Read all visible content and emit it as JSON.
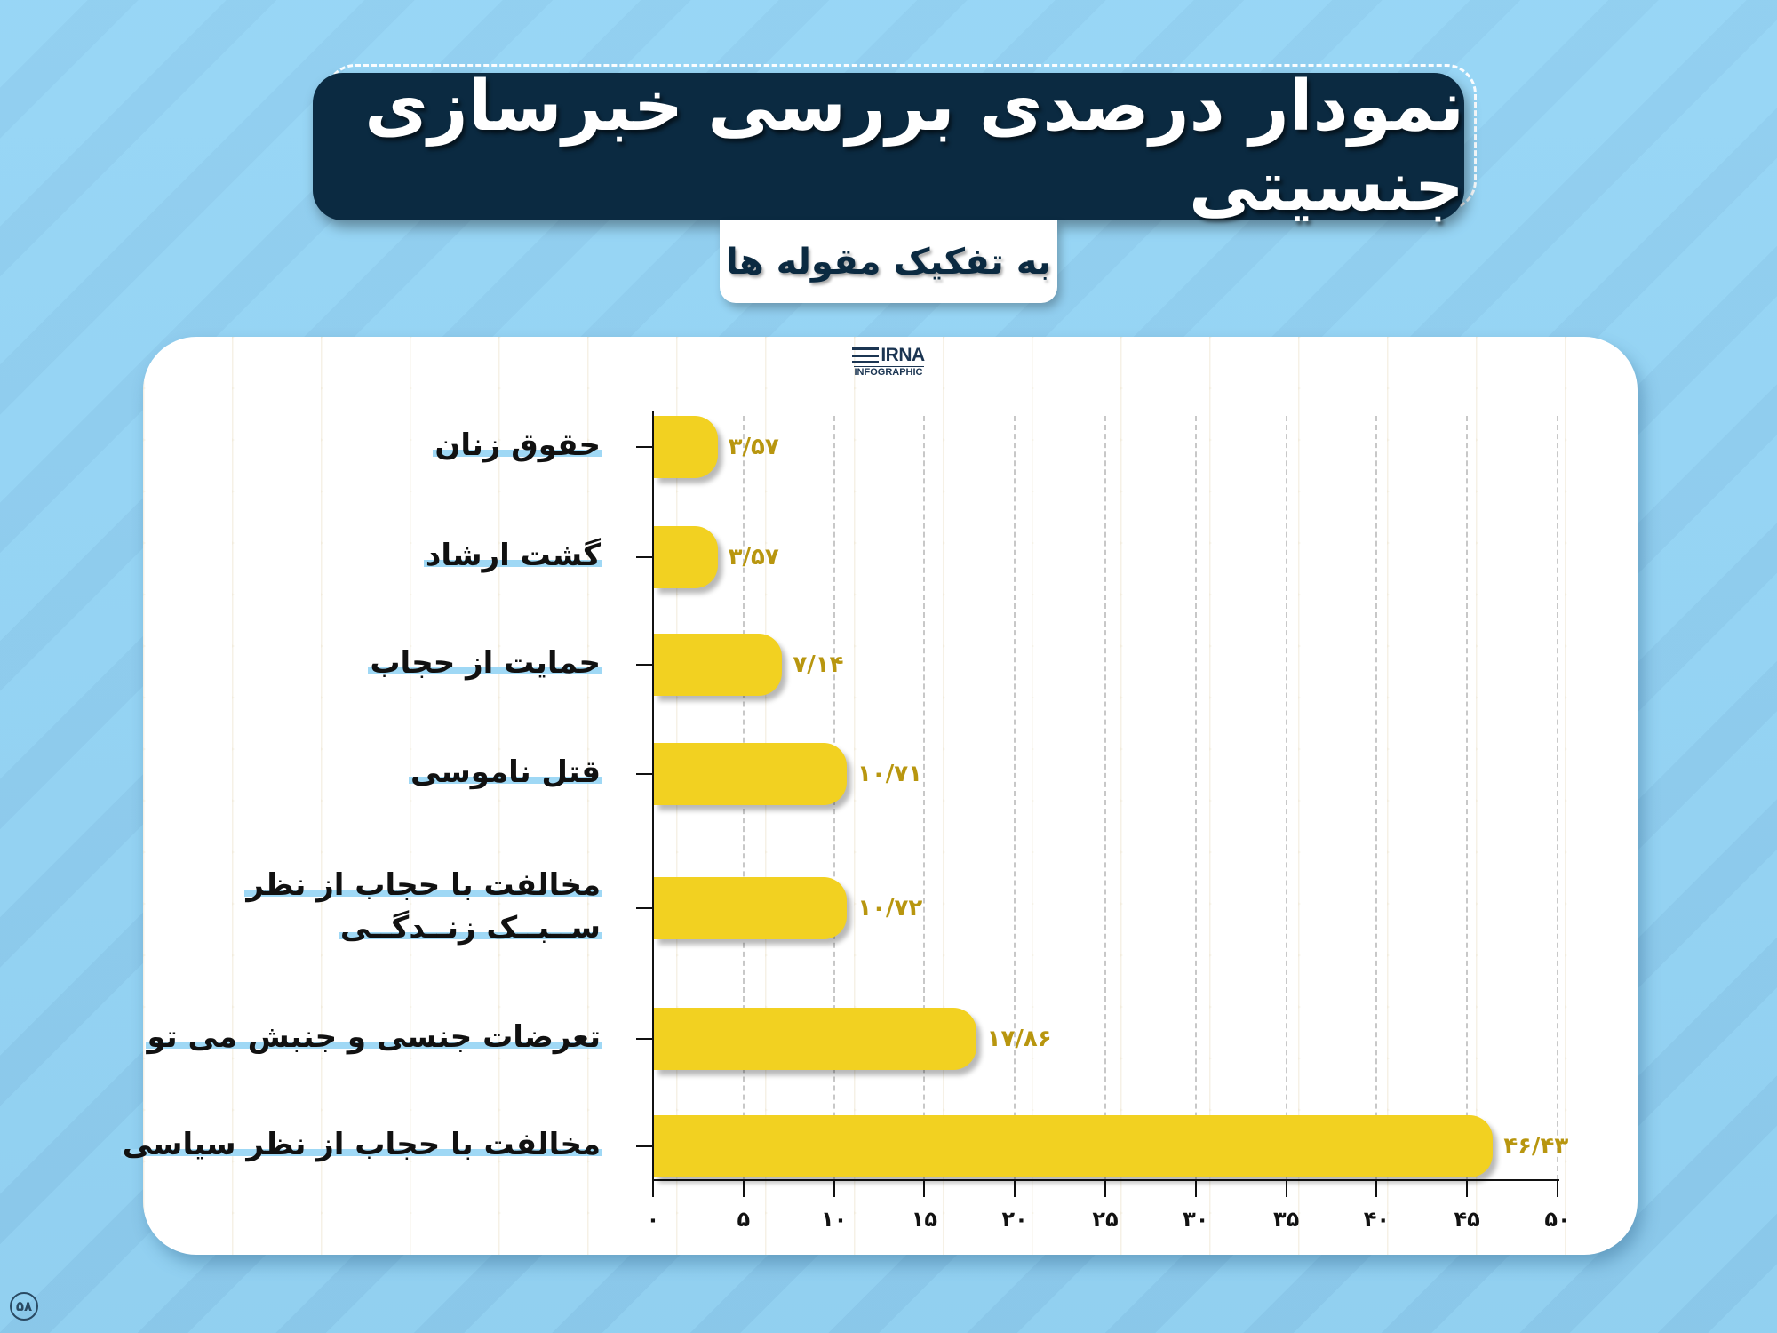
{
  "header": {
    "title": "نمودار درصدی بررسی خبرسازی جنسیتی",
    "subtitle": "به تفکیک مقوله ها"
  },
  "logo": {
    "brand": "IRNA",
    "tagline": "INFOGRAPHIC"
  },
  "page_number": "۵۸",
  "colors": {
    "background": "#94d3f3",
    "banner": "#0b2a41",
    "bar": "#f2d121",
    "value_label": "#b8960f",
    "label_highlight": "#9fd8f5"
  },
  "chart": {
    "categories": [
      {
        "label_lines": [
          "حقوق زنان"
        ],
        "value_text": "۳/۵۷"
      },
      {
        "label_lines": [
          "گشت ارشاد"
        ],
        "value_text": "۳/۵۷"
      },
      {
        "label_lines": [
          "حمایت از حجاب"
        ],
        "value_text": "۷/۱۴"
      },
      {
        "label_lines": [
          "قتل ناموسی"
        ],
        "value_text": "۱۰/۷۱"
      },
      {
        "label_lines": [
          "مخالفت با حجاب از نظر",
          "ســبــک زنــدگــی"
        ],
        "value_text": "۱۰/۷۲"
      },
      {
        "label_lines": [
          "تعرضات جنسی و جنبش می تو"
        ],
        "value_text": "۱۷/۸۶"
      },
      {
        "label_lines": [
          "مخالفت با حجاب از نظر سیاسی"
        ],
        "value_text": "۴۶/۴۳"
      }
    ],
    "x_ticks": [
      "۰",
      "۵",
      "۱۰",
      "۱۵",
      "۲۰",
      "۲۵",
      "۳۰",
      "۳۵",
      "۴۰",
      "۴۵",
      "۵۰"
    ]
  },
  "chart_data": {
    "type": "bar",
    "orientation": "horizontal",
    "title": "نمودار درصدی بررسی خبرسازی جنسیتی",
    "subtitle": "به تفکیک مقوله ها",
    "categories": [
      "حقوق زنان",
      "گشت ارشاد",
      "حمایت از حجاب",
      "قتل ناموسی",
      "مخالفت با حجاب از نظر سبک زندگی",
      "تعرضات جنسی و جنبش می تو",
      "مخالفت با حجاب از نظر سیاسی"
    ],
    "values": [
      3.57,
      3.57,
      7.14,
      10.71,
      10.72,
      17.86,
      46.43
    ],
    "value_labels": [
      "۳/۵۷",
      "۳/۵۷",
      "۷/۱۴",
      "۱۰/۷۱",
      "۱۰/۷۲",
      "۱۷/۸۶",
      "۴۶/۴۳"
    ],
    "xlabel": "",
    "ylabel": "",
    "xlim": [
      0,
      50
    ],
    "x_ticks": [
      0,
      5,
      10,
      15,
      20,
      25,
      30,
      35,
      40,
      45,
      50
    ],
    "grid": {
      "vertical": true,
      "style": "dashed"
    },
    "legend": null,
    "units": "percent"
  }
}
